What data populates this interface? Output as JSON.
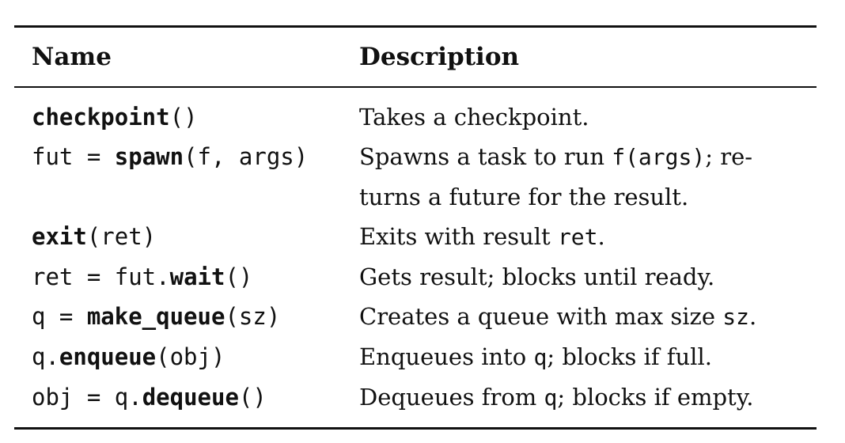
{
  "table": {
    "headers": {
      "name": "Name",
      "description": "Description"
    },
    "rows": [
      {
        "name": {
          "pre": "",
          "fn": "checkpoint",
          "post": "()"
        },
        "desc": {
          "line1_a": "Takes a checkpoint.",
          "line1_code": "",
          "line1_b": "",
          "line2": ""
        }
      },
      {
        "name": {
          "pre": "fut = ",
          "fn": "spawn",
          "post": "(f, args)"
        },
        "desc": {
          "line1_a": "Spawns a task to run ",
          "line1_code": "f(args)",
          "line1_b": "; re-",
          "line2": "turns a future for the result."
        }
      },
      {
        "name": {
          "pre": "",
          "fn": "exit",
          "post": "(ret)"
        },
        "desc": {
          "line1_a": "Exits with result ",
          "line1_code": "ret",
          "line1_b": ".",
          "line2": ""
        }
      },
      {
        "name": {
          "pre": "ret = fut.",
          "fn": "wait",
          "post": "()"
        },
        "desc": {
          "line1_a": "Gets result; blocks until ready.",
          "line1_code": "",
          "line1_b": "",
          "line2": ""
        }
      },
      {
        "name": {
          "pre": "q = ",
          "fn": "make_queue",
          "post": "(sz)"
        },
        "desc": {
          "line1_a": "Creates a queue with max size ",
          "line1_code": "sz",
          "line1_b": ".",
          "line2": ""
        }
      },
      {
        "name": {
          "pre": "q.",
          "fn": "enqueue",
          "post": "(obj)"
        },
        "desc": {
          "line1_a": "Enqueues into ",
          "line1_code": "q",
          "line1_b": "; blocks if full.",
          "line2": ""
        }
      },
      {
        "name": {
          "pre": "obj = q.",
          "fn": "dequeue",
          "post": "()"
        },
        "desc": {
          "line1_a": "Dequeues from ",
          "line1_code": "q",
          "line1_b": "; blocks if empty.",
          "line2": ""
        }
      }
    ]
  }
}
